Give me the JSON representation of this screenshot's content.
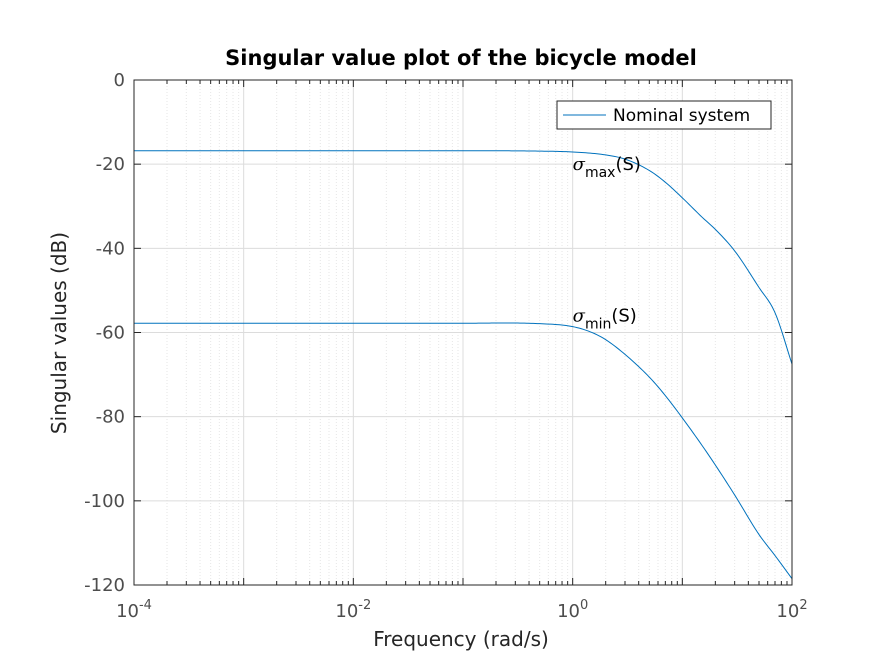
{
  "chart_data": {
    "type": "line",
    "title": "Singular value plot of the bicycle model",
    "xlabel": "Frequency (rad/s)",
    "ylabel": "Singular values (dB)",
    "xscale": "log",
    "xlim": [
      0.0001,
      100
    ],
    "ylim": [
      -120,
      0
    ],
    "grid": true,
    "minor_grid": true,
    "x_ticks": [
      {
        "base": "10",
        "exp": "-4"
      },
      {
        "base": "10",
        "exp": "-2"
      },
      {
        "base": "10",
        "exp": "0"
      },
      {
        "base": "10",
        "exp": "2"
      }
    ],
    "y_ticks": [
      "0",
      "-20",
      "-40",
      "-60",
      "-80",
      "-100",
      "-120"
    ],
    "legend": {
      "placement": "top-right",
      "entries": [
        "Nominal system"
      ]
    },
    "series": [
      {
        "name": "Nominal system",
        "color": "#0072bd",
        "curves": [
          {
            "label": "sigma_max",
            "x": [
              0.0001,
              0.001,
              0.01,
              0.1,
              0.5,
              1,
              2,
              3,
              5,
              7,
              10,
              15,
              20,
              30,
              50,
              70,
              100
            ],
            "y": [
              -16.8,
              -16.8,
              -16.8,
              -16.8,
              -16.9,
              -17.1,
              -17.8,
              -18.8,
              -21.5,
              -24.3,
              -28.0,
              -32.5,
              -35.5,
              -40.6,
              -49.3,
              -55.3,
              -67.5
            ]
          },
          {
            "label": "sigma_min",
            "x": [
              0.0001,
              0.001,
              0.01,
              0.1,
              0.5,
              1,
              1.5,
              2,
              3,
              5,
              7,
              10,
              15,
              20,
              30,
              50,
              70,
              100
            ],
            "y": [
              -57.8,
              -57.8,
              -57.8,
              -57.8,
              -57.9,
              -58.6,
              -60.0,
              -61.7,
              -65.2,
              -70.6,
              -75.0,
              -80.3,
              -86.7,
              -91.5,
              -98.6,
              -108.0,
              -113.0,
              -118.5
            ]
          }
        ]
      }
    ],
    "annotations": [
      {
        "symbol": "σ",
        "sub": "max",
        "suffix": "(S)",
        "x": 1.0,
        "y": -20
      },
      {
        "symbol": "σ",
        "sub": "min",
        "suffix": "(S)",
        "x": 1.0,
        "y": -56
      }
    ]
  }
}
